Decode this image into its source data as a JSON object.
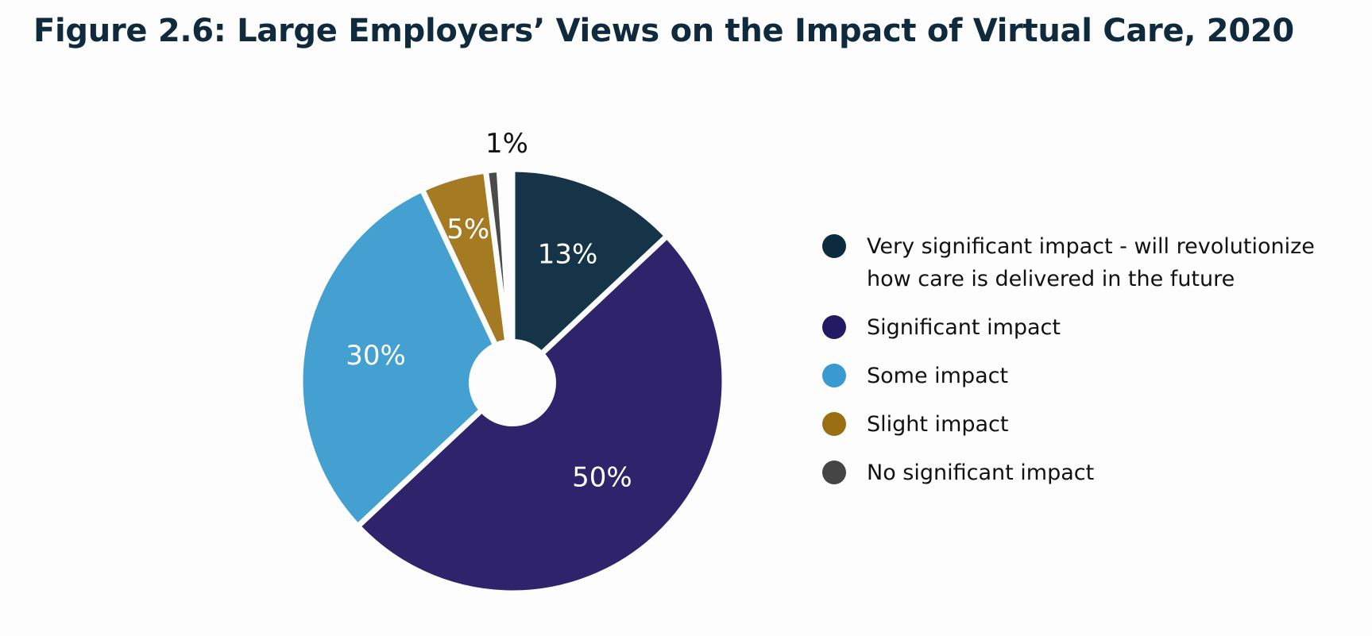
{
  "title": "Figure 2.6: Large Employers’ Views on the Impact of Virtual Care, 2020",
  "chart_data": {
    "type": "pie",
    "style": "donut",
    "title": "Figure 2.6: Large Employers’ Views on the Impact of Virtual Care, 2020",
    "categories": [
      "Very significant impact - will revolutionize how care is delivered in the future",
      "Significant impact",
      "Some impact",
      "Slight impact",
      "No significant impact"
    ],
    "values": [
      13,
      50,
      30,
      5,
      1
    ],
    "labels": [
      "13%",
      "50%",
      "30%",
      "5%",
      "1%"
    ],
    "colors": [
      "#163447",
      "#2f236c",
      "#45a0d2",
      "#a47a22",
      "#4a4a4a"
    ],
    "unit": "%",
    "start": "top",
    "direction": "clockwise",
    "legend_position": "right"
  },
  "legend": [
    {
      "label_line1": "Very significant impact - will revolutionize",
      "label_line2": "how care is delivered in the future",
      "color": "#0d2b3e"
    },
    {
      "label_line1": "Significant impact",
      "label_line2": "",
      "color": "#221a63"
    },
    {
      "label_line1": "Some impact",
      "label_line2": "",
      "color": "#3a9acf"
    },
    {
      "label_line1": "Slight impact",
      "label_line2": "",
      "color": "#9a6e12"
    },
    {
      "label_line1": "No significant impact",
      "label_line2": "",
      "color": "#454545"
    }
  ]
}
